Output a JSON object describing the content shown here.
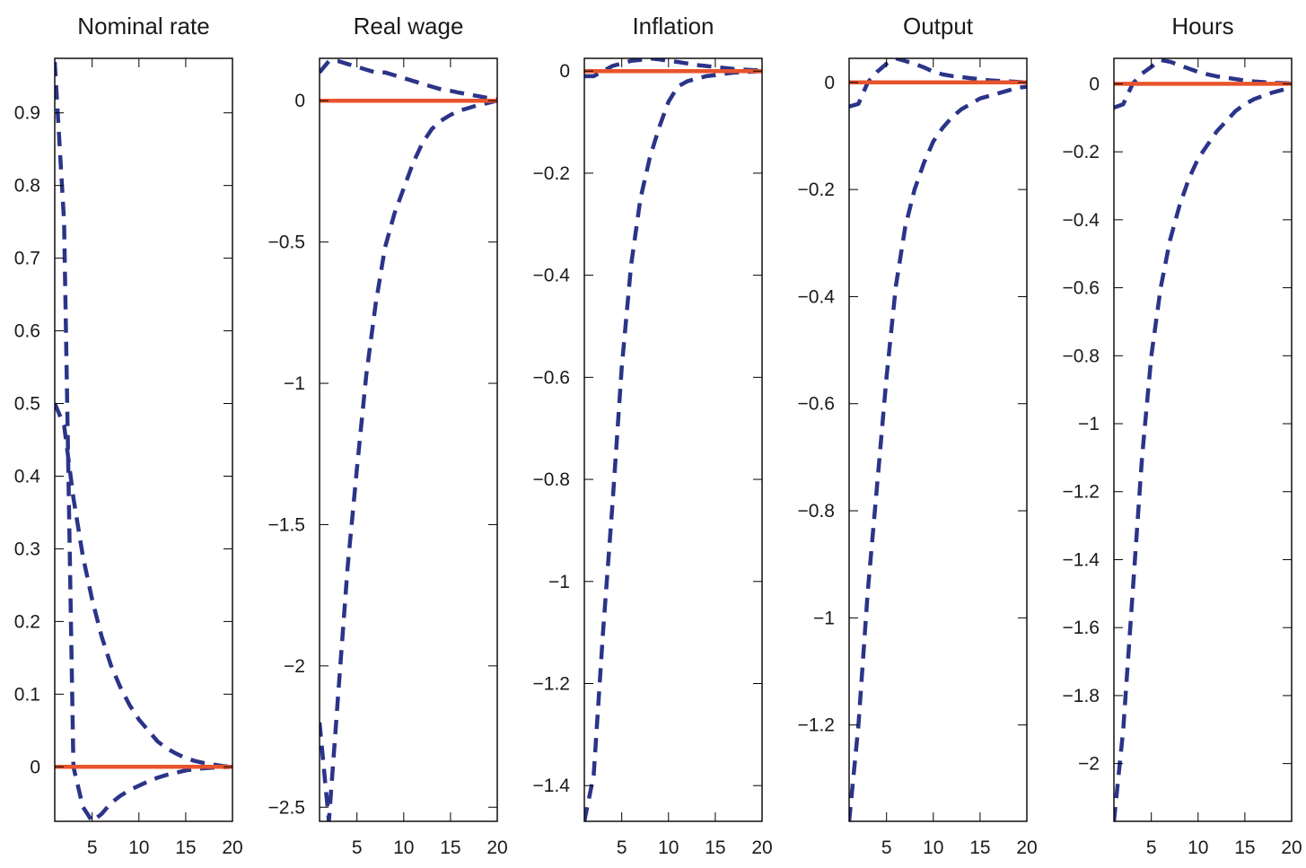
{
  "colors": {
    "zero_line": "#e8542c",
    "band": "#2b3488",
    "frame": "#000000",
    "background": "#ffffff"
  },
  "chart_data": [
    {
      "type": "line",
      "title": "Nominal rate",
      "xlim": [
        1,
        20
      ],
      "ylim": [
        -0.075,
        0.975
      ],
      "xticks": [
        5,
        10,
        15,
        20
      ],
      "yticks": [
        0,
        0.1,
        0.2,
        0.3,
        0.4,
        0.5,
        0.6,
        0.7,
        0.8,
        0.9
      ],
      "ytick_labels": [
        "0",
        "0.1",
        "0.2",
        "0.3",
        "0.4",
        "0.5",
        "0.6",
        "0.7",
        "0.8",
        "0.9"
      ],
      "x": [
        1,
        2,
        3,
        4,
        5,
        6,
        7,
        8,
        9,
        10,
        11,
        12,
        13,
        14,
        15,
        16,
        17,
        18,
        19,
        20
      ],
      "series": [
        {
          "role": "upper",
          "style": "dashed",
          "values": [
            0.5,
            0.47,
            0.37,
            0.29,
            0.23,
            0.18,
            0.14,
            0.11,
            0.085,
            0.065,
            0.05,
            0.035,
            0.025,
            0.018,
            0.012,
            0.008,
            0.005,
            0.003,
            0.001,
            0.0
          ]
        },
        {
          "role": "lower",
          "style": "dashed",
          "values": [
            0.97,
            0.75,
            0.0,
            -0.055,
            -0.075,
            -0.065,
            -0.05,
            -0.04,
            -0.032,
            -0.026,
            -0.02,
            -0.015,
            -0.011,
            -0.008,
            -0.005,
            -0.003,
            -0.002,
            -0.001,
            -0.0005,
            0.0
          ]
        },
        {
          "role": "zero",
          "style": "solid",
          "values": [
            0,
            0,
            0,
            0,
            0,
            0,
            0,
            0,
            0,
            0,
            0,
            0,
            0,
            0,
            0,
            0,
            0,
            0,
            0,
            0
          ]
        }
      ]
    },
    {
      "type": "line",
      "title": "Real wage",
      "xlim": [
        1,
        20
      ],
      "ylim": [
        -2.55,
        0.15
      ],
      "xticks": [
        5,
        10,
        15,
        20
      ],
      "yticks": [
        0,
        -0.5,
        -1,
        -1.5,
        -2,
        -2.5
      ],
      "ytick_labels": [
        "0",
        "−0.5",
        "−1",
        "−1.5",
        "−2",
        "−2.5"
      ],
      "x": [
        1,
        2,
        3,
        4,
        5,
        6,
        7,
        8,
        9,
        10,
        11,
        12,
        13,
        14,
        15,
        16,
        17,
        18,
        19,
        20
      ],
      "series": [
        {
          "role": "upper",
          "style": "dashed",
          "values": [
            0.1,
            0.14,
            0.14,
            0.13,
            0.12,
            0.11,
            0.1,
            0.1,
            0.09,
            0.08,
            0.07,
            0.06,
            0.05,
            0.04,
            0.035,
            0.028,
            0.022,
            0.016,
            0.01,
            0.005
          ]
        },
        {
          "role": "lower",
          "style": "dashed",
          "values": [
            -2.2,
            -2.55,
            -2.1,
            -1.65,
            -1.3,
            -0.97,
            -0.72,
            -0.52,
            -0.4,
            -0.31,
            -0.22,
            -0.15,
            -0.1,
            -0.07,
            -0.05,
            -0.035,
            -0.025,
            -0.015,
            -0.008,
            0.0
          ]
        },
        {
          "role": "zero",
          "style": "solid",
          "values": [
            0,
            0,
            0,
            0,
            0,
            0,
            0,
            0,
            0,
            0,
            0,
            0,
            0,
            0,
            0,
            0,
            0,
            0,
            0,
            0
          ]
        }
      ]
    },
    {
      "type": "line",
      "title": "Inflation",
      "xlim": [
        1,
        20
      ],
      "ylim": [
        -1.47,
        0.025
      ],
      "xticks": [
        5,
        10,
        15,
        20
      ],
      "yticks": [
        0,
        -0.2,
        -0.4,
        -0.6,
        -0.8,
        -1,
        -1.2,
        -1.4
      ],
      "ytick_labels": [
        "0",
        "−0.2",
        "−0.4",
        "−0.6",
        "−0.8",
        "−1",
        "−1.2",
        "−1.4"
      ],
      "x": [
        1,
        2,
        3,
        4,
        5,
        6,
        7,
        8,
        9,
        10,
        11,
        12,
        13,
        14,
        15,
        16,
        17,
        18,
        19,
        20
      ],
      "series": [
        {
          "role": "upper",
          "style": "dashed",
          "values": [
            -0.01,
            -0.01,
            0.0,
            0.01,
            0.015,
            0.02,
            0.022,
            0.025,
            0.023,
            0.02,
            0.018,
            0.015,
            0.012,
            0.01,
            0.008,
            0.006,
            0.004,
            0.003,
            0.002,
            0.001
          ]
        },
        {
          "role": "lower",
          "style": "dashed",
          "values": [
            -1.47,
            -1.38,
            -1.1,
            -0.85,
            -0.58,
            -0.38,
            -0.25,
            -0.17,
            -0.11,
            -0.06,
            -0.03,
            -0.02,
            -0.015,
            -0.01,
            -0.008,
            -0.005,
            -0.003,
            -0.002,
            -0.001,
            0.0
          ]
        },
        {
          "role": "zero",
          "style": "solid",
          "values": [
            0,
            0,
            0,
            0,
            0,
            0,
            0,
            0,
            0,
            0,
            0,
            0,
            0,
            0,
            0,
            0,
            0,
            0,
            0,
            0
          ]
        }
      ]
    },
    {
      "type": "line",
      "title": "Output",
      "xlim": [
        1,
        20
      ],
      "ylim": [
        -1.38,
        0.045
      ],
      "xticks": [
        5,
        10,
        15,
        20
      ],
      "yticks": [
        0,
        -0.2,
        -0.4,
        -0.6,
        -0.8,
        -1,
        -1.2
      ],
      "ytick_labels": [
        "0",
        "−0.2",
        "−0.4",
        "−0.6",
        "−0.8",
        "−1",
        "−1.2"
      ],
      "x": [
        1,
        2,
        3,
        4,
        5,
        6,
        7,
        8,
        9,
        10,
        11,
        12,
        13,
        14,
        15,
        16,
        17,
        18,
        19,
        20
      ],
      "series": [
        {
          "role": "upper",
          "style": "dashed",
          "values": [
            -0.045,
            -0.04,
            0.0,
            0.02,
            0.035,
            0.045,
            0.04,
            0.035,
            0.028,
            0.02,
            0.015,
            0.012,
            0.01,
            0.008,
            0.006,
            0.004,
            0.003,
            0.002,
            0.001,
            0.0
          ]
        },
        {
          "role": "lower",
          "style": "dashed",
          "values": [
            -1.38,
            -1.2,
            -0.95,
            -0.75,
            -0.55,
            -0.38,
            -0.27,
            -0.2,
            -0.15,
            -0.11,
            -0.085,
            -0.065,
            -0.05,
            -0.04,
            -0.03,
            -0.025,
            -0.02,
            -0.015,
            -0.01,
            -0.008
          ]
        },
        {
          "role": "zero",
          "style": "solid",
          "values": [
            0,
            0,
            0,
            0,
            0,
            0,
            0,
            0,
            0,
            0,
            0,
            0,
            0,
            0,
            0,
            0,
            0,
            0,
            0,
            0
          ]
        }
      ]
    },
    {
      "type": "line",
      "title": "Hours",
      "xlim": [
        1,
        20
      ],
      "ylim": [
        -2.17,
        0.075
      ],
      "xticks": [
        5,
        10,
        15,
        20
      ],
      "yticks": [
        0,
        -0.2,
        -0.4,
        -0.6,
        -0.8,
        -1,
        -1.2,
        -1.4,
        -1.6,
        -1.8,
        -2
      ],
      "ytick_labels": [
        "0",
        "−0.2",
        "−0.4",
        "−0.6",
        "−0.8",
        "−1",
        "−1.2",
        "−1.4",
        "−1.6",
        "−1.8",
        "−2"
      ],
      "x": [
        1,
        2,
        3,
        4,
        5,
        6,
        7,
        8,
        9,
        10,
        11,
        12,
        13,
        14,
        15,
        16,
        17,
        18,
        19,
        20
      ],
      "series": [
        {
          "role": "upper",
          "style": "dashed",
          "values": [
            -0.07,
            -0.06,
            0.0,
            0.03,
            0.05,
            0.07,
            0.065,
            0.055,
            0.045,
            0.035,
            0.028,
            0.022,
            0.018,
            0.014,
            0.01,
            0.007,
            0.005,
            0.003,
            0.002,
            0.001
          ]
        },
        {
          "role": "lower",
          "style": "dashed",
          "values": [
            -2.17,
            -1.9,
            -1.5,
            -1.1,
            -0.8,
            -0.6,
            -0.46,
            -0.36,
            -0.28,
            -0.22,
            -0.18,
            -0.14,
            -0.11,
            -0.08,
            -0.06,
            -0.045,
            -0.035,
            -0.025,
            -0.018,
            -0.012
          ]
        },
        {
          "role": "zero",
          "style": "solid",
          "values": [
            0,
            0,
            0,
            0,
            0,
            0,
            0,
            0,
            0,
            0,
            0,
            0,
            0,
            0,
            0,
            0,
            0,
            0,
            0,
            0
          ]
        }
      ]
    }
  ]
}
